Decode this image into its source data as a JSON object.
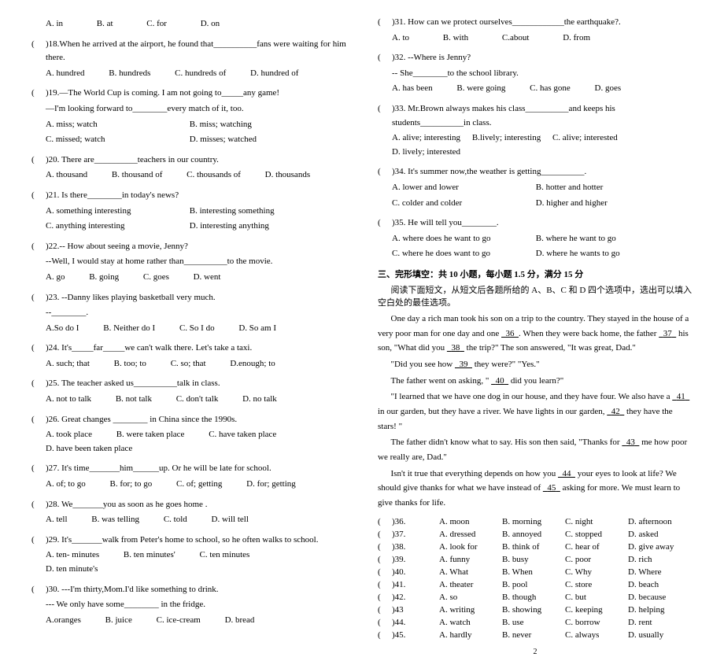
{
  "left": {
    "q17_opts": [
      "A. in",
      "B. at",
      "C. for",
      "D. on"
    ],
    "q18": ")18.When he arrived at the airport, he found that__________fans were waiting for him there.",
    "q18_opts": [
      "A. hundred",
      "B. hundreds",
      "C. hundreds of",
      "D. hundred of"
    ],
    "q19a": ")19.—The World Cup is coming. I am not going to_____any game!",
    "q19b": "—I'm looking forward to________every match of it, too.",
    "q19_opts": [
      "A. miss; watch",
      "B. miss; watching",
      "C. missed; watch",
      "D. misses; watched"
    ],
    "q20": ")20. There are__________teachers in our country.",
    "q20_opts": [
      "A. thousand",
      "B. thousand of",
      "C. thousands of",
      "D. thousands"
    ],
    "q21": ")21. Is there________in today's news?",
    "q21_opts": [
      "A. something interesting",
      "B. interesting something",
      "C. anything interesting",
      "D. interesting anything"
    ],
    "q22a": ")22.-- How about seeing a movie, Jenny?",
    "q22b": "--Well, I would stay at home rather than__________to the movie.",
    "q22_opts": [
      "A. go",
      "B. going",
      "C. goes",
      "D. went"
    ],
    "q23a": ")23. --Danny likes playing basketball very much.",
    "q23b": "--________.",
    "q23_opts": [
      "A.So do I",
      "B. Neither do I",
      "C. So I do",
      "D. So am I"
    ],
    "q24": ")24. It's_____far_____we can't walk there. Let's take a taxi.",
    "q24_opts": [
      "A. such; that",
      "B. too; to",
      "C. so; that",
      "D.enough; to"
    ],
    "q25": ")25. The teacher asked us__________talk in class.",
    "q25_opts": [
      "A. not to talk",
      "B. not talk",
      "C. don't talk",
      "D. no talk"
    ],
    "q26": ")26. Great changes ________ in China since the 1990s.",
    "q26_opts": [
      "A. took place",
      "B. were taken place",
      "C. have taken place",
      "D. have been taken place"
    ],
    "q27": ")27. It's time_______him______up. Or he will be late for school.",
    "q27_opts": [
      "A. of; to go",
      "B. for; to go",
      "C. of; getting",
      "D. for; getting"
    ],
    "q28": ")28. We_______you as soon as he goes home .",
    "q28_opts": [
      "A. tell",
      "B. was telling",
      "C. told",
      "D. will tell"
    ],
    "q29": ")29. It's_______walk from Peter's home to school, so he often walks to school.",
    "q29_opts": [
      "A. ten- minutes",
      "B. ten minutes'",
      "C. ten minutes",
      "D. ten minute's"
    ],
    "q30a": ")30. ---I'm thirty,Mom.I'd like something to drink.",
    "q30b": "--- We only have some________ in the fridge.",
    "q30_opts": [
      "A.oranges",
      "B. juice",
      "C. ice-cream",
      "D. bread"
    ]
  },
  "right": {
    "q31": ")31. How can we protect ourselves____________the earthquake?.",
    "q31_opts": [
      "A. to",
      "B. with",
      "C.about",
      "D. from"
    ],
    "q32a": ")32. --Where is Jenny?",
    "q32b": "-- She________to the school library.",
    "q32_opts": [
      "A. has been",
      "B. were going",
      "C. has gone",
      "D. goes"
    ],
    "q33": ")33. Mr.Brown always makes his class__________and keeps his students__________in class.",
    "q33_opts": [
      "A. alive; interesting",
      "B.lively; interesting",
      "C. alive; interested",
      "D. lively; interested"
    ],
    "q34": ")34. It's summer now,the weather is getting__________.",
    "q34_opts": [
      "A. lower and lower",
      "B. hotter and hotter",
      "C. colder and colder",
      "D. higher and higher"
    ],
    "q35": ")35. He will tell you________.",
    "q35_opts": [
      "A. where does he want to go",
      "B. where he want to go",
      "C. where he does want to go",
      "D. where he wants to go"
    ],
    "section": "三、完形填空：共 10 小题，每小题 1.5 分，满分 15 分",
    "instr": "阅读下面短文，从短文后各题所给的 A、B、C 和 D 四个选项中，选出可以填入空白处的最佳选项。",
    "p1": "One day a rich man took his son on a trip to the country. They stayed in the house of a very poor man for one day and one ",
    "p1b": ". When they were back home, the father ",
    "p1c": " his son, \"What did you ",
    "p1d": " the trip?\" The son answered, \"It was great, Dad.\"",
    "p2": "\"Did you see how ",
    "p2b": " they were?\"    \"Yes.\"",
    "p3": "The father went on asking, \" ",
    "p3b": " did you learn?\"",
    "p4": "\"I learned that we have one dog in our house, and they have four. We also have a ",
    "p4b": " in our garden, but they have a river. We have lights in our garden, ",
    "p4c": " they have the stars! \"",
    "p5": "The father didn't know what to say. His son then said, \"Thanks for ",
    "p5b": " me how poor we really are, Dad.\"",
    "p6": "Isn't it true that everything depends on how you ",
    "p6b": " your eyes to look at life? We should give thanks for what we have instead of ",
    "p6c": " asking for more. We must learn to give thanks for life.",
    "n36": "36",
    "n37": "37",
    "n38": "38",
    "n39": "39",
    "n40": "40",
    "n41": "41",
    "n42": "42",
    "n43": "43",
    "n44": "44",
    "n45": "45",
    "cloze": [
      {
        "n": ")36.",
        "a": "A. moon",
        "b": "B. morning",
        "c": "C. night",
        "d": "D. afternoon"
      },
      {
        "n": ")37.",
        "a": "A. dressed",
        "b": "B. annoyed",
        "c": "C. stopped",
        "d": "D. asked"
      },
      {
        "n": ")38.",
        "a": "A. look for",
        "b": "B. think of",
        "c": "C. hear of",
        "d": "D. give away"
      },
      {
        "n": ")39.",
        "a": "A. funny",
        "b": "B. busy",
        "c": "C. poor",
        "d": "D. rich"
      },
      {
        "n": ")40.",
        "a": "A. What",
        "b": "B. When",
        "c": "C. Why",
        "d": "D. Where"
      },
      {
        "n": ")41.",
        "a": "A. theater",
        "b": "B. pool",
        "c": "C. store",
        "d": "D. beach"
      },
      {
        "n": ")42.",
        "a": "A. so",
        "b": "B. though",
        "c": "C. but",
        "d": "D. because"
      },
      {
        "n": ")43",
        "a": "A. writing",
        "b": "B. showing",
        "c": "C. keeping",
        "d": "D. helping"
      },
      {
        "n": ")44.",
        "a": "A. watch",
        "b": "B. use",
        "c": "C. borrow",
        "d": "D. rent"
      },
      {
        "n": ")45.",
        "a": "A. hardly",
        "b": "B. never",
        "c": "C. always",
        "d": "D. usually"
      }
    ],
    "pagenum": "2"
  }
}
